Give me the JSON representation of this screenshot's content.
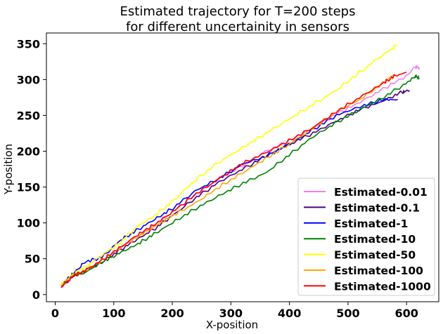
{
  "chart_data": {
    "type": "line",
    "title_line1": "Estimated trajectory for T=200 steps",
    "title_line2": "for different uncertainity in sensors",
    "xlabel": "X-position",
    "ylabel": "Y-position",
    "xlim": [
      -15,
      655
    ],
    "ylim": [
      -10,
      365
    ],
    "xticks": [
      0,
      100,
      200,
      300,
      400,
      500,
      600
    ],
    "yticks": [
      0,
      50,
      100,
      150,
      200,
      250,
      300,
      350
    ],
    "legend_position": "lower-right",
    "grid": false,
    "series": [
      {
        "name": "Estimated-0.01",
        "color": "#ee82ee",
        "x": [
          10,
          30,
          50,
          80,
          110,
          140,
          170,
          200,
          240,
          280,
          320,
          360,
          400,
          440,
          480,
          520,
          560,
          600,
          615,
          622
        ],
        "y": [
          10,
          25,
          33,
          48,
          65,
          80,
          97,
          115,
          140,
          162,
          180,
          200,
          215,
          232,
          252,
          268,
          287,
          305,
          318,
          315
        ]
      },
      {
        "name": "Estimated-0.1",
        "color": "#4b0082",
        "x": [
          10,
          30,
          50,
          80,
          110,
          140,
          170,
          200,
          240,
          280,
          320,
          360,
          400,
          440,
          480,
          520,
          560,
          590,
          605
        ],
        "y": [
          10,
          25,
          33,
          45,
          62,
          77,
          92,
          110,
          135,
          157,
          175,
          193,
          210,
          225,
          242,
          258,
          270,
          282,
          285
        ]
      },
      {
        "name": "Estimated-1",
        "color": "#0000ff",
        "x": [
          10,
          30,
          50,
          80,
          110,
          140,
          170,
          200,
          240,
          280,
          320,
          360,
          400,
          440,
          480,
          520,
          560,
          585
        ],
        "y": [
          12,
          28,
          45,
          52,
          75,
          90,
          105,
          120,
          145,
          162,
          182,
          193,
          210,
          230,
          250,
          262,
          272,
          272
        ]
      },
      {
        "name": "Estimated-10",
        "color": "#008000",
        "x": [
          10,
          30,
          50,
          80,
          110,
          140,
          170,
          200,
          240,
          280,
          320,
          360,
          400,
          440,
          480,
          520,
          560,
          600,
          615,
          622
        ],
        "y": [
          12,
          28,
          30,
          45,
          58,
          70,
          85,
          100,
          120,
          138,
          155,
          170,
          195,
          220,
          240,
          258,
          275,
          295,
          305,
          302
        ]
      },
      {
        "name": "Estimated-50",
        "color": "#ffff00",
        "x": [
          10,
          30,
          50,
          80,
          110,
          140,
          170,
          200,
          240,
          280,
          320,
          360,
          400,
          440,
          480,
          520,
          560,
          585
        ],
        "y": [
          12,
          28,
          38,
          55,
          72,
          95,
          110,
          130,
          160,
          185,
          205,
          225,
          245,
          265,
          285,
          310,
          335,
          348
        ]
      },
      {
        "name": "Estimated-100",
        "color": "#ffa500",
        "x": [
          10,
          30,
          50,
          80,
          110,
          140,
          170,
          200,
          240,
          280,
          320,
          360,
          400,
          440,
          480,
          520,
          560,
          580
        ],
        "y": [
          12,
          27,
          33,
          48,
          65,
          80,
          95,
          110,
          128,
          150,
          170,
          190,
          210,
          232,
          255,
          272,
          295,
          308
        ]
      },
      {
        "name": "Estimated-1000",
        "color": "#ff0000",
        "x": [
          10,
          30,
          50,
          80,
          110,
          140,
          170,
          200,
          240,
          280,
          320,
          360,
          400,
          440,
          480,
          520,
          560,
          580,
          600
        ],
        "y": [
          10,
          26,
          33,
          48,
          65,
          83,
          98,
          115,
          140,
          162,
          183,
          198,
          215,
          233,
          255,
          275,
          295,
          305,
          310
        ]
      }
    ]
  }
}
